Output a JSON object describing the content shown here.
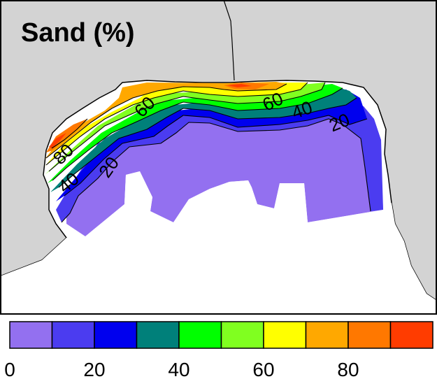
{
  "title": "Sand (%)",
  "contour_labels": [
    "80",
    "60",
    "60",
    "40",
    "40",
    "20",
    "20"
  ],
  "legend": {
    "ticks": [
      "0",
      "20",
      "40",
      "60",
      "80"
    ],
    "bins": [
      {
        "color": "#9370f0"
      },
      {
        "color": "#4b3cf0"
      },
      {
        "color": "#0000ee"
      },
      {
        "color": "#00807a"
      },
      {
        "color": "#00ff00"
      },
      {
        "color": "#80ff20"
      },
      {
        "color": "#ffff00"
      },
      {
        "color": "#ffa800"
      },
      {
        "color": "#ff7800"
      },
      {
        "color": "#ff3c00"
      }
    ]
  },
  "colors": {
    "land": "#d3d3d3",
    "water": "#ffffff",
    "frame": "#000000"
  }
}
